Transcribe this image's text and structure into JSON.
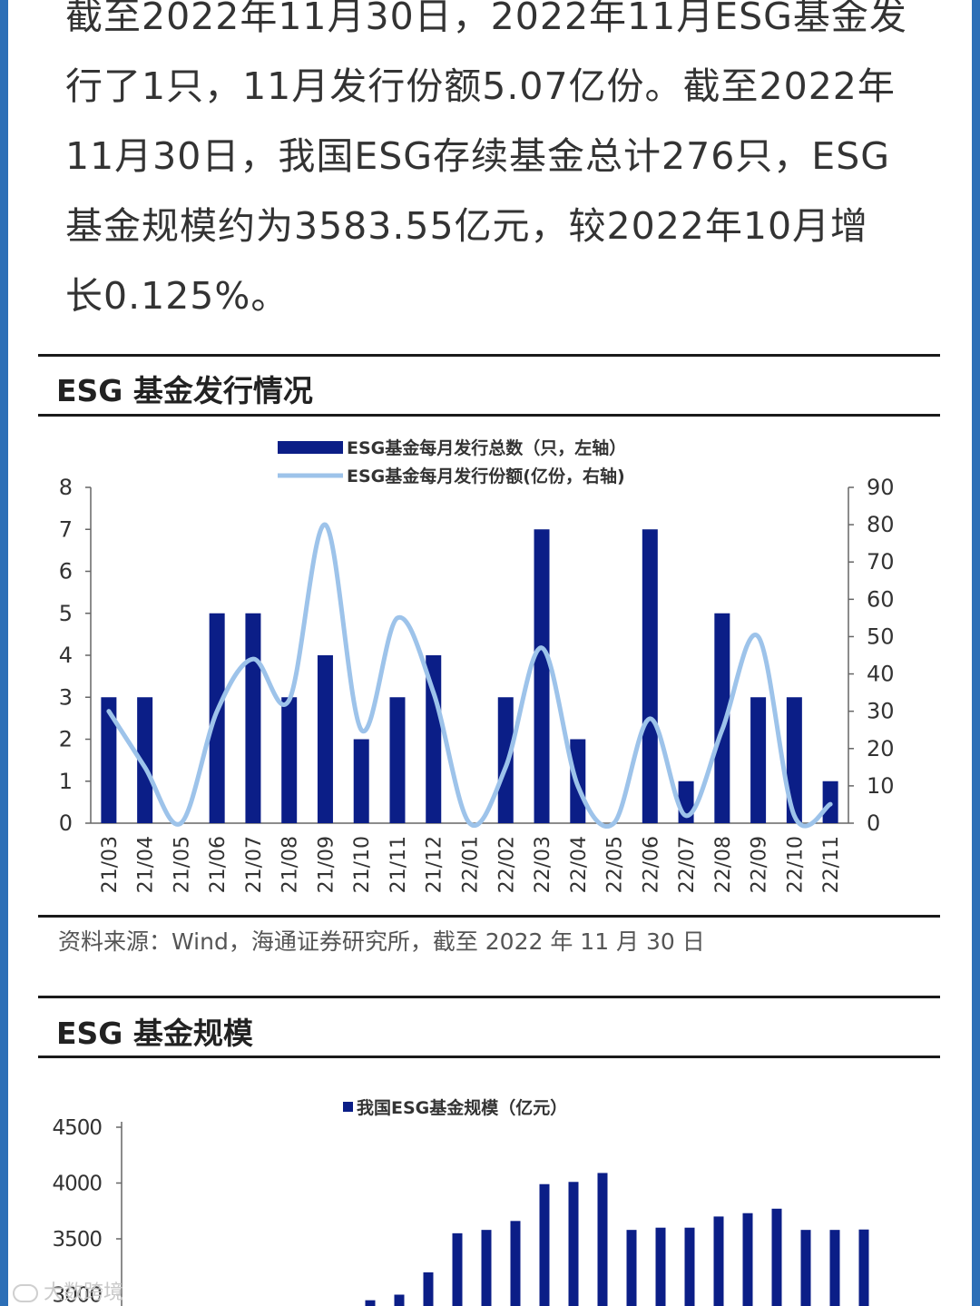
{
  "paragraph": {
    "lines": [
      "截至2022年11月30日，2022年11月ESG基金发",
      "行了1只，11月发行份额5.07亿份。截至2022年",
      "11月30日，我国ESG存续基金总计276只，ESG",
      "基金规模约为3583.55亿元，较2022年10月增",
      "长0.125%。"
    ]
  },
  "section1": {
    "title": "ESG 基金发行情况",
    "source": "资料来源：Wind，海通证券研究所，截至 2022 年 11 月 30 日"
  },
  "section2": {
    "title": "ESG 基金规模"
  },
  "watermark": {
    "text": "大数跨境"
  },
  "colors": {
    "bar": "#0b1e87",
    "line": "#9dc3ea",
    "frame": "#2c6fb7"
  },
  "chart_data": [
    {
      "type": "bar+line",
      "categories": [
        "21/03",
        "21/04",
        "21/05",
        "21/06",
        "21/07",
        "21/08",
        "21/09",
        "21/10",
        "21/11",
        "21/12",
        "22/01",
        "22/02",
        "22/03",
        "22/04",
        "22/05",
        "22/06",
        "22/07",
        "22/08",
        "22/09",
        "22/10",
        "22/11"
      ],
      "series": [
        {
          "name": "ESG基金每月发行总数（只，左轴）",
          "type": "bar",
          "axis": "left",
          "values": [
            3,
            3,
            0,
            5,
            5,
            3,
            4,
            2,
            3,
            4,
            0,
            3,
            7,
            2,
            0,
            7,
            1,
            5,
            3,
            3,
            1
          ]
        },
        {
          "name": "ESG基金每月发行份额(亿份，右轴)",
          "type": "line",
          "axis": "right",
          "values": [
            30,
            15,
            0,
            30,
            44,
            33,
            80,
            25,
            55,
            35,
            0,
            15,
            47,
            10,
            0,
            28,
            2,
            25,
            50,
            2,
            5.07
          ]
        }
      ],
      "left_axis": {
        "range": [
          0,
          8
        ],
        "ticks": [
          "0",
          "1",
          "2",
          "3",
          "4",
          "5",
          "6",
          "7",
          "8"
        ]
      },
      "right_axis": {
        "range": [
          0,
          90
        ],
        "ticks": [
          "0",
          "10",
          "20",
          "30",
          "40",
          "50",
          "60",
          "70",
          "80",
          "90"
        ]
      },
      "legend_position": "top-center",
      "grid": false
    },
    {
      "type": "bar",
      "series": [
        {
          "name": "我国ESG基金规模（亿元）",
          "values": [
            2950,
            3000,
            3200,
            3550,
            3580,
            3660,
            3990,
            4010,
            4090,
            3580,
            3600,
            3600,
            3700,
            3730,
            3770,
            3580,
            3580,
            3583.55
          ]
        }
      ],
      "y_axis": {
        "range": [
          3000,
          4500
        ],
        "ticks": [
          "3000",
          "3500",
          "4000",
          "4500"
        ]
      },
      "legend_position": "top-center",
      "grid": false
    }
  ]
}
